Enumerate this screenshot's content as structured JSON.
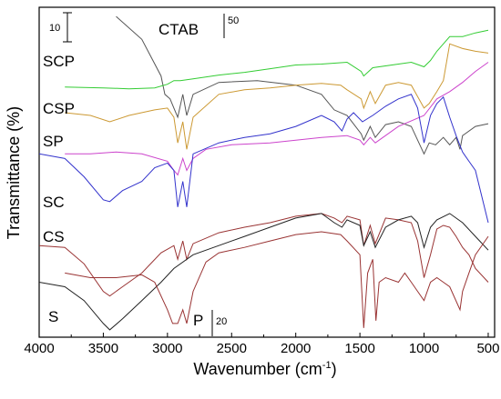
{
  "chart_data": {
    "type": "line",
    "xlabel": "Wavenumber (cm",
    "xlabel_sup": "-1",
    "xlabel_close": ")",
    "ylabel": "Transmittance (%)",
    "xlim": [
      4000,
      450
    ],
    "x_reversed": true,
    "x_ticks": [
      4000,
      3500,
      3000,
      2500,
      2000,
      1500,
      1000,
      500
    ],
    "grid": false,
    "legend": "inline labels on curves",
    "y_units": "offset transmittance (arbitrary, stacked)",
    "scale_bars": [
      {
        "label": "10",
        "applies_to": "SCP, CSP, SP, SC, CS, S"
      },
      {
        "label": "50",
        "applies_to": "CTAB"
      },
      {
        "label": "20",
        "applies_to": "P"
      }
    ],
    "series": [
      {
        "name": "CTAB",
        "color": "#555555",
        "points": [
          [
            3400,
            -10
          ],
          [
            3200,
            -35
          ],
          [
            3050,
            -75
          ],
          [
            3020,
            -95
          ],
          [
            2980,
            -100
          ],
          [
            2950,
            -110
          ],
          [
            2920,
            -120
          ],
          [
            2880,
            -95
          ],
          [
            2850,
            -118
          ],
          [
            2800,
            -95
          ],
          [
            2600,
            -82
          ],
          [
            2300,
            -80
          ],
          [
            2000,
            -85
          ],
          [
            1800,
            -95
          ],
          [
            1700,
            -112
          ],
          [
            1600,
            -118
          ],
          [
            1490,
            -138
          ],
          [
            1470,
            -145
          ],
          [
            1420,
            -130
          ],
          [
            1380,
            -142
          ],
          [
            1300,
            -128
          ],
          [
            1200,
            -125
          ],
          [
            1100,
            -130
          ],
          [
            1000,
            -160
          ],
          [
            960,
            -148
          ],
          [
            910,
            -150
          ],
          [
            850,
            -142
          ],
          [
            800,
            -150
          ],
          [
            750,
            -142
          ],
          [
            720,
            -155
          ],
          [
            700,
            -140
          ],
          [
            600,
            -130
          ],
          [
            500,
            -127
          ]
        ]
      },
      {
        "name": "SCP",
        "color": "#33cc33",
        "points": [
          [
            3800,
            -87
          ],
          [
            3500,
            -88
          ],
          [
            3300,
            -89
          ],
          [
            3100,
            -88
          ],
          [
            3000,
            -84
          ],
          [
            2950,
            -80
          ],
          [
            2900,
            -80
          ],
          [
            2800,
            -78
          ],
          [
            2600,
            -74
          ],
          [
            2400,
            -71
          ],
          [
            2200,
            -67
          ],
          [
            2000,
            -63
          ],
          [
            1800,
            -62
          ],
          [
            1600,
            -60
          ],
          [
            1490,
            -70
          ],
          [
            1470,
            -75
          ],
          [
            1400,
            -66
          ],
          [
            1200,
            -62
          ],
          [
            1100,
            -60
          ],
          [
            1000,
            -65
          ],
          [
            950,
            -58
          ],
          [
            900,
            -48
          ],
          [
            850,
            -40
          ],
          [
            800,
            -32
          ],
          [
            700,
            -32
          ],
          [
            600,
            -28
          ],
          [
            500,
            -25
          ]
        ]
      },
      {
        "name": "CSP",
        "color": "#cc9933",
        "points": [
          [
            3800,
            -115
          ],
          [
            3600,
            -118
          ],
          [
            3450,
            -125
          ],
          [
            3300,
            -118
          ],
          [
            3100,
            -112
          ],
          [
            3000,
            -110
          ],
          [
            2950,
            -120
          ],
          [
            2920,
            -148
          ],
          [
            2880,
            -125
          ],
          [
            2850,
            -155
          ],
          [
            2800,
            -120
          ],
          [
            2600,
            -95
          ],
          [
            2400,
            -90
          ],
          [
            2200,
            -88
          ],
          [
            2000,
            -85
          ],
          [
            1800,
            -83
          ],
          [
            1650,
            -85
          ],
          [
            1600,
            -90
          ],
          [
            1490,
            -100
          ],
          [
            1470,
            -110
          ],
          [
            1420,
            -92
          ],
          [
            1380,
            -105
          ],
          [
            1300,
            -85
          ],
          [
            1200,
            -82
          ],
          [
            1100,
            -85
          ],
          [
            1000,
            -110
          ],
          [
            960,
            -105
          ],
          [
            900,
            -92
          ],
          [
            850,
            -80
          ],
          [
            800,
            -40
          ],
          [
            700,
            -45
          ],
          [
            600,
            -48
          ],
          [
            500,
            -50
          ]
        ]
      },
      {
        "name": "SP",
        "color": "#cc44cc",
        "points": [
          [
            3800,
            -160
          ],
          [
            3600,
            -160
          ],
          [
            3400,
            -158
          ],
          [
            3200,
            -160
          ],
          [
            3000,
            -168
          ],
          [
            2950,
            -178
          ],
          [
            2920,
            -183
          ],
          [
            2880,
            -165
          ],
          [
            2850,
            -178
          ],
          [
            2800,
            -165
          ],
          [
            2700,
            -155
          ],
          [
            2500,
            -150
          ],
          [
            2200,
            -148
          ],
          [
            2000,
            -145
          ],
          [
            1800,
            -142
          ],
          [
            1600,
            -140
          ],
          [
            1500,
            -145
          ],
          [
            1470,
            -150
          ],
          [
            1420,
            -142
          ],
          [
            1380,
            -148
          ],
          [
            1200,
            -130
          ],
          [
            1000,
            -118
          ],
          [
            900,
            -100
          ],
          [
            800,
            -92
          ],
          [
            700,
            -82
          ],
          [
            600,
            -70
          ],
          [
            500,
            -60
          ]
        ]
      },
      {
        "name": "SC",
        "color": "#3333cc",
        "points": [
          [
            4000,
            -160
          ],
          [
            3800,
            -165
          ],
          [
            3650,
            -185
          ],
          [
            3500,
            -210
          ],
          [
            3450,
            -212
          ],
          [
            3350,
            -200
          ],
          [
            3200,
            -190
          ],
          [
            3100,
            -175
          ],
          [
            3000,
            -170
          ],
          [
            2950,
            -178
          ],
          [
            2920,
            -218
          ],
          [
            2880,
            -190
          ],
          [
            2850,
            -218
          ],
          [
            2800,
            -160
          ],
          [
            2600,
            -148
          ],
          [
            2400,
            -142
          ],
          [
            2200,
            -138
          ],
          [
            2000,
            -130
          ],
          [
            1800,
            -118
          ],
          [
            1700,
            -125
          ],
          [
            1640,
            -135
          ],
          [
            1600,
            -122
          ],
          [
            1550,
            -115
          ],
          [
            1480,
            -125
          ],
          [
            1400,
            -118
          ],
          [
            1300,
            -108
          ],
          [
            1200,
            -100
          ],
          [
            1100,
            -95
          ],
          [
            1050,
            -110
          ],
          [
            1000,
            -148
          ],
          [
            950,
            -118
          ],
          [
            900,
            -105
          ],
          [
            850,
            -98
          ],
          [
            800,
            -120
          ],
          [
            750,
            -140
          ],
          [
            700,
            -158
          ],
          [
            650,
            -168
          ],
          [
            600,
            -178
          ],
          [
            500,
            -235
          ]
        ]
      },
      {
        "name": "CS",
        "color": "#993333",
        "points": [
          [
            4000,
            -260
          ],
          [
            3800,
            -262
          ],
          [
            3650,
            -280
          ],
          [
            3500,
            -310
          ],
          [
            3450,
            -315
          ],
          [
            3350,
            -305
          ],
          [
            3200,
            -290
          ],
          [
            3050,
            -268
          ],
          [
            2950,
            -260
          ],
          [
            2920,
            -275
          ],
          [
            2880,
            -255
          ],
          [
            2850,
            -275
          ],
          [
            2800,
            -258
          ],
          [
            2600,
            -246
          ],
          [
            2400,
            -240
          ],
          [
            2200,
            -235
          ],
          [
            2000,
            -228
          ],
          [
            1800,
            -225
          ],
          [
            1700,
            -230
          ],
          [
            1640,
            -235
          ],
          [
            1600,
            -228
          ],
          [
            1500,
            -232
          ],
          [
            1470,
            -260
          ],
          [
            1420,
            -238
          ],
          [
            1380,
            -258
          ],
          [
            1300,
            -230
          ],
          [
            1200,
            -232
          ],
          [
            1100,
            -235
          ],
          [
            1050,
            -255
          ],
          [
            1000,
            -295
          ],
          [
            950,
            -270
          ],
          [
            900,
            -242
          ],
          [
            850,
            -238
          ],
          [
            800,
            -240
          ],
          [
            750,
            -250
          ],
          [
            700,
            -262
          ],
          [
            650,
            -270
          ],
          [
            600,
            -285
          ],
          [
            500,
            -300
          ]
        ]
      },
      {
        "name": "S",
        "color": "#222222",
        "points": [
          [
            4000,
            -300
          ],
          [
            3800,
            -305
          ],
          [
            3650,
            -320
          ],
          [
            3500,
            -345
          ],
          [
            3450,
            -352
          ],
          [
            3350,
            -340
          ],
          [
            3200,
            -320
          ],
          [
            3050,
            -300
          ],
          [
            2950,
            -285
          ],
          [
            2800,
            -270
          ],
          [
            2600,
            -260
          ],
          [
            2400,
            -250
          ],
          [
            2200,
            -240
          ],
          [
            2000,
            -230
          ],
          [
            1800,
            -225
          ],
          [
            1700,
            -235
          ],
          [
            1640,
            -240
          ],
          [
            1600,
            -232
          ],
          [
            1500,
            -238
          ],
          [
            1470,
            -260
          ],
          [
            1420,
            -245
          ],
          [
            1380,
            -262
          ],
          [
            1300,
            -240
          ],
          [
            1200,
            -232
          ],
          [
            1100,
            -228
          ],
          [
            1050,
            -235
          ],
          [
            1000,
            -262
          ],
          [
            950,
            -240
          ],
          [
            900,
            -232
          ],
          [
            800,
            -225
          ],
          [
            700,
            -235
          ],
          [
            600,
            -250
          ],
          [
            500,
            -265
          ]
        ]
      },
      {
        "name": "P",
        "color": "#993333",
        "points": [
          [
            3800,
            -290
          ],
          [
            3600,
            -295
          ],
          [
            3400,
            -295
          ],
          [
            3200,
            -292
          ],
          [
            3100,
            -300
          ],
          [
            3000,
            -330
          ],
          [
            2960,
            -345
          ],
          [
            2920,
            -345
          ],
          [
            2880,
            -330
          ],
          [
            2850,
            -345
          ],
          [
            2800,
            -310
          ],
          [
            2700,
            -278
          ],
          [
            2600,
            -268
          ],
          [
            2400,
            -262
          ],
          [
            2200,
            -255
          ],
          [
            2000,
            -248
          ],
          [
            1800,
            -245
          ],
          [
            1650,
            -248
          ],
          [
            1600,
            -255
          ],
          [
            1500,
            -270
          ],
          [
            1470,
            -350
          ],
          [
            1440,
            -290
          ],
          [
            1400,
            -275
          ],
          [
            1375,
            -342
          ],
          [
            1350,
            -300
          ],
          [
            1300,
            -295
          ],
          [
            1200,
            -300
          ],
          [
            1150,
            -290
          ],
          [
            1100,
            -300
          ],
          [
            1050,
            -310
          ],
          [
            1000,
            -320
          ],
          [
            950,
            -300
          ],
          [
            900,
            -295
          ],
          [
            850,
            -300
          ],
          [
            800,
            -305
          ],
          [
            720,
            -330
          ],
          [
            700,
            -310
          ],
          [
            650,
            -290
          ],
          [
            600,
            -270
          ],
          [
            500,
            -250
          ]
        ]
      }
    ],
    "curve_labels": [
      "CTAB",
      "SCP",
      "CSP",
      "SP",
      "SC",
      "CS",
      "S",
      "P"
    ]
  }
}
